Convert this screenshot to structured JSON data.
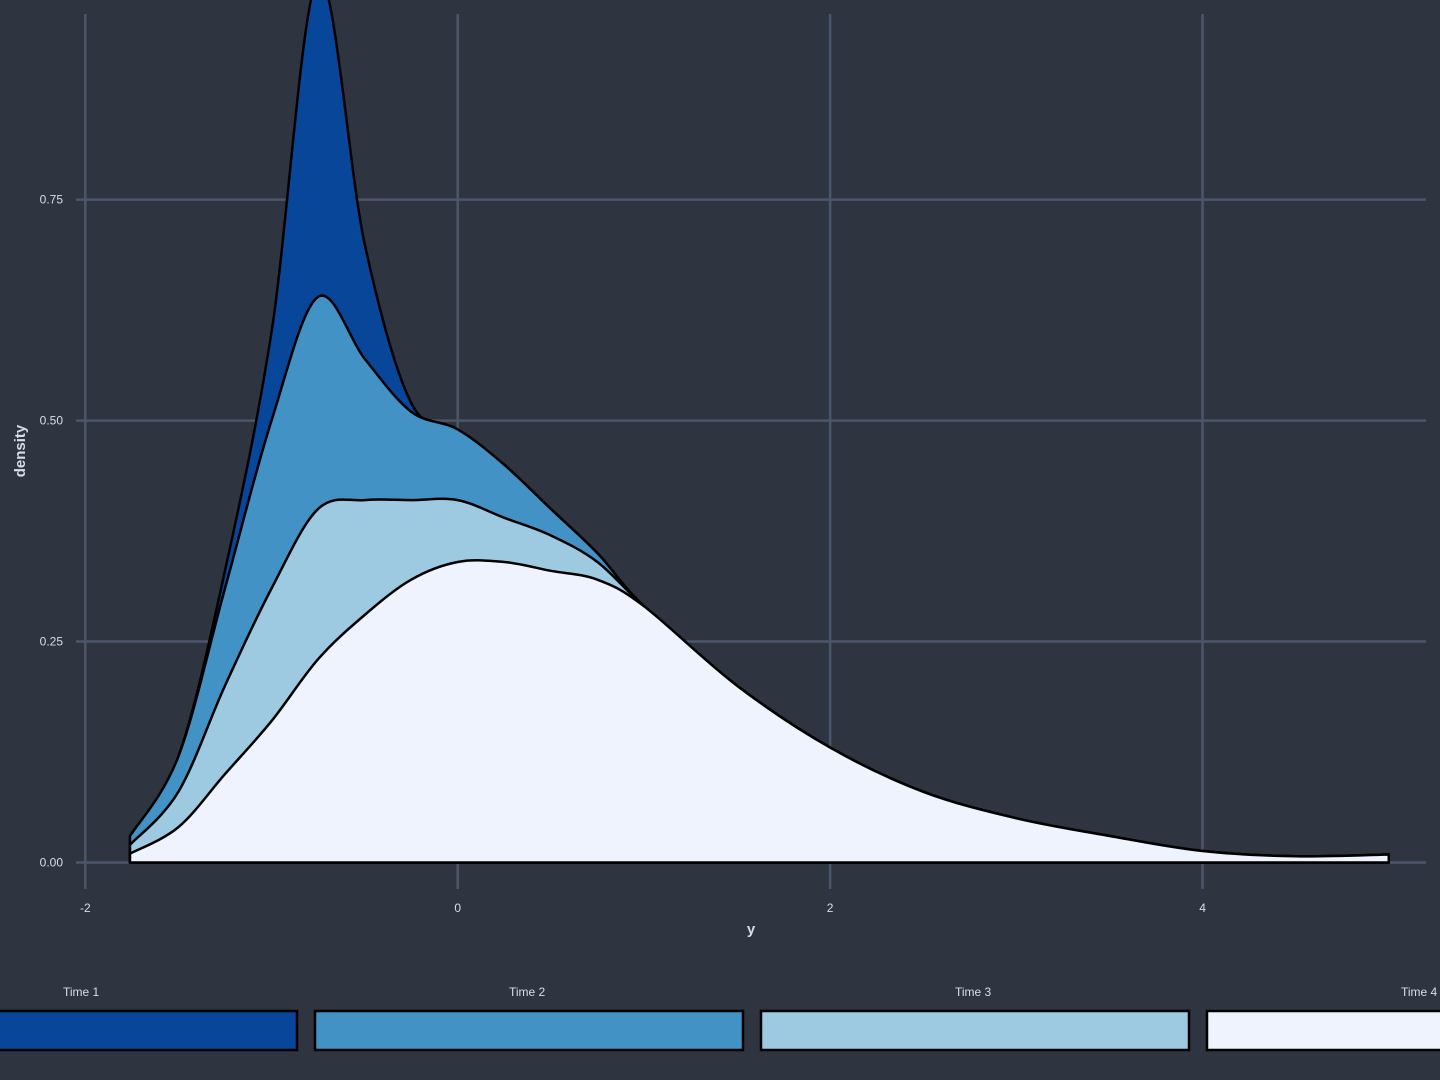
{
  "theme": {
    "background": "#2e3440",
    "grid": "#4c566a",
    "text": "#d8dee9"
  },
  "chart_data": {
    "type": "area",
    "subtype": "stacked-density",
    "title": "",
    "xlabel": "y",
    "ylabel": "density",
    "xlim": [
      -2.05,
      5.2
    ],
    "ylim": [
      -0.03,
      0.96
    ],
    "x_ticks": [
      -2,
      0,
      2,
      4
    ],
    "x_tick_labels": [
      "-2",
      "0",
      "2",
      "4"
    ],
    "y_ticks": [
      0,
      0.25,
      0.5,
      0.75
    ],
    "y_tick_labels": [
      "0.00",
      "0.25",
      "0.50",
      "0.75"
    ],
    "grid": true,
    "legend": {
      "position": "bottom"
    },
    "x": [
      -1.76,
      -1.5,
      -1.25,
      -1.0,
      -0.75,
      -0.5,
      -0.25,
      0.0,
      0.25,
      0.5,
      0.75,
      1.0,
      1.5,
      2.0,
      2.5,
      3.0,
      3.5,
      4.0,
      4.5,
      5.0
    ],
    "series": [
      {
        "name": "Time 1",
        "color": "#08469a",
        "values": [
          0.0,
          0.0,
          0.02,
          0.1,
          0.36,
          0.13,
          0.01,
          0.0,
          0.0,
          0.0,
          0.0,
          0.0,
          0.0,
          0.0,
          0.0,
          0.0,
          0.0,
          0.0,
          0.0,
          0.0
        ]
      },
      {
        "name": "Time 2",
        "color": "#4292c6",
        "values": [
          0.01,
          0.04,
          0.11,
          0.19,
          0.24,
          0.16,
          0.1,
          0.08,
          0.06,
          0.03,
          0.01,
          0.0,
          0.0,
          0.0,
          0.0,
          0.0,
          0.0,
          0.0,
          0.0,
          0.0
        ]
      },
      {
        "name": "Time 3",
        "color": "#9ecae1",
        "values": [
          0.01,
          0.04,
          0.1,
          0.15,
          0.17,
          0.13,
          0.09,
          0.07,
          0.05,
          0.04,
          0.02,
          0.0,
          0.0,
          0.0,
          0.0,
          0.0,
          0.0,
          0.0,
          0.0,
          0.0
        ]
      },
      {
        "name": "Time 4",
        "color": "#eef3fe",
        "values": [
          0.01,
          0.04,
          0.1,
          0.16,
          0.23,
          0.28,
          0.32,
          0.34,
          0.34,
          0.33,
          0.32,
          0.29,
          0.2,
          0.13,
          0.08,
          0.05,
          0.03,
          0.013,
          0.007,
          0.009
        ]
      }
    ]
  }
}
